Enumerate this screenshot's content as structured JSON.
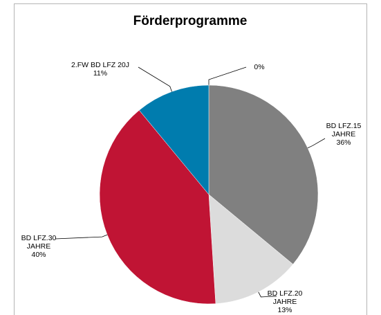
{
  "chart_data": {
    "type": "pie",
    "title": "Förderprogramme",
    "categories": [
      null,
      "BD LFZ.15 JAHRE",
      "BD LFZ.20 JAHRE",
      "BD LFZ.30 JAHRE",
      "2.FW BD LFZ 20J"
    ],
    "values": [
      0,
      36,
      13,
      40,
      11
    ],
    "value_labels": [
      "0%",
      "36%",
      "13%",
      "40%",
      "11%"
    ],
    "colors": [
      "#808080",
      "#808080",
      "#dcdcdc",
      "#c01434",
      "#007cae"
    ]
  }
}
